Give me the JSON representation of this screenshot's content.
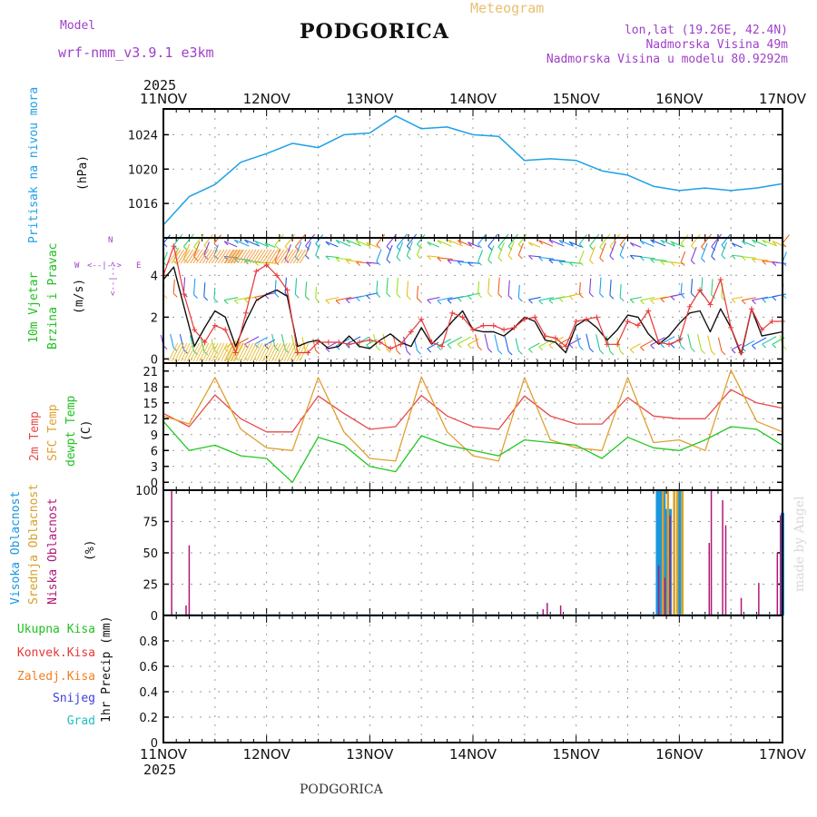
{
  "header": {
    "model_label": "Model",
    "model_name": "wrf-nmm_v3.9.1 e3km",
    "title": "PODGORICA",
    "meteogram": "Meteogram",
    "lonlat": "lon,lat (19.26E, 42.4N)",
    "altitude": "Nadmorska Visina 49m",
    "model_altitude": "Nadmorska Visina u modelu 80.9292m",
    "year_top": "2025",
    "year_bottom": "2025",
    "footer": "PODGORICA",
    "credit": "made by Angel"
  },
  "axis": {
    "days": [
      "11NOV",
      "12NOV",
      "13NOV",
      "14NOV",
      "15NOV",
      "16NOV",
      "17NOV"
    ]
  },
  "panels": {
    "pressure": {
      "label": "Pritisak na nivou mora",
      "unit": "(hPa)"
    },
    "wind": {
      "label1": "10m Vjetar",
      "label2": "Brzina i Pravac",
      "unit": "(m/s)",
      "compass_n": "N",
      "compass_e": "E",
      "compass_w": "W",
      "compass_s": "S",
      "arrow_left": "<--|-->",
      "arrow_right": "<--|-->"
    },
    "temp": {
      "label1": "2m Temp",
      "label2": "SFC Temp",
      "label3": "dewpt Temp",
      "unit": "(C)"
    },
    "cloud": {
      "label1": "Visoka Oblacnost",
      "label2": "Srednja Oblacnost",
      "label3": "Niska Oblacnost",
      "unit": "(%)"
    },
    "precip": {
      "labels": [
        "Ukupna Kisa",
        "Konvek.Kisa",
        "Zaledj.Kisa",
        "Snijeg",
        "Grad"
      ],
      "unit": "1hr Precip (mm)"
    }
  },
  "colors": {
    "pressure": "#1ca0e8",
    "wind_max": "#111111",
    "wind_avg": "#e83838",
    "t2m": "#e84848",
    "tsfc": "#e0a030",
    "dewpt": "#20c820",
    "cloud_high": "#1896e0",
    "cloud_mid": "#d8a028",
    "cloud_low": "#b01878",
    "rain": "#20c020",
    "conv": "#e83838",
    "frz": "#f08020",
    "snow": "#4040d8",
    "hail": "#20c0c0"
  },
  "chart_data": [
    {
      "type": "line",
      "title": "Pritisak na nivou mora",
      "ylabel": "(hPa)",
      "ylim": [
        1012,
        1027
      ],
      "yticks": [
        1016,
        1020,
        1024
      ],
      "x_days": [
        0,
        0.25,
        0.5,
        0.75,
        1,
        1.25,
        1.5,
        1.75,
        2,
        2.25,
        2.5,
        2.75,
        3,
        3.25,
        3.5,
        3.75,
        4,
        4.25,
        4.5,
        4.75,
        5,
        5.25,
        5.5,
        5.75,
        6
      ],
      "series": [
        {
          "name": "SLP",
          "values": [
            1013.5,
            1016.8,
            1018.2,
            1020.8,
            1021.8,
            1023.0,
            1022.5,
            1024.0,
            1024.2,
            1026.2,
            1024.7,
            1024.9,
            1024.0,
            1023.8,
            1021.0,
            1021.2,
            1021.0,
            1019.8,
            1019.3,
            1018.0,
            1017.5,
            1017.8,
            1017.5,
            1017.8,
            1018.3
          ]
        }
      ]
    },
    {
      "type": "line",
      "title": "10m Vjetar Brzina i Pravac",
      "ylabel": "(m/s)",
      "ylim": [
        -0.2,
        5.8
      ],
      "yticks": [
        0,
        2,
        4
      ],
      "x_days": [
        0,
        0.1,
        0.2,
        0.3,
        0.4,
        0.5,
        0.6,
        0.7,
        0.8,
        0.9,
        1,
        1.1,
        1.2,
        1.3,
        1.4,
        1.5,
        1.6,
        1.7,
        1.8,
        1.9,
        2,
        2.1,
        2.2,
        2.3,
        2.4,
        2.5,
        2.6,
        2.7,
        2.8,
        2.9,
        3,
        3.1,
        3.2,
        3.3,
        3.4,
        3.5,
        3.6,
        3.7,
        3.8,
        3.9,
        4,
        4.1,
        4.2,
        4.3,
        4.4,
        4.5,
        4.6,
        4.7,
        4.8,
        4.9,
        5,
        5.1,
        5.2,
        5.3,
        5.4,
        5.5,
        5.6,
        5.7,
        5.8,
        5.9,
        6
      ],
      "series": [
        {
          "name": "max",
          "values": [
            3.8,
            4.4,
            2.5,
            0.6,
            1.5,
            2.3,
            2.0,
            0.6,
            1.8,
            2.8,
            3.1,
            3.3,
            3.0,
            0.6,
            0.8,
            0.9,
            0.5,
            0.6,
            1.1,
            0.6,
            0.5,
            0.9,
            1.2,
            0.8,
            0.6,
            1.5,
            0.7,
            1.2,
            1.8,
            2.3,
            1.4,
            1.3,
            1.3,
            1.1,
            1.5,
            2.0,
            1.8,
            0.9,
            0.8,
            0.3,
            1.6,
            1.9,
            1.5,
            0.9,
            1.4,
            2.1,
            2.0,
            1.2,
            0.7,
            1.1,
            1.7,
            2.2,
            2.3,
            1.3,
            2.4,
            1.5,
            0.2,
            2.4,
            1.1,
            1.2,
            1.3
          ]
        },
        {
          "name": "avg",
          "values": [
            4.0,
            5.4,
            3.1,
            1.4,
            0.8,
            1.6,
            1.4,
            0.3,
            2.2,
            4.2,
            4.5,
            4.0,
            3.3,
            0.3,
            0.3,
            0.8,
            0.8,
            0.8,
            0.7,
            0.8,
            0.9,
            0.8,
            0.5,
            0.7,
            1.3,
            1.9,
            0.8,
            0.6,
            2.2,
            2.0,
            1.4,
            1.6,
            1.6,
            1.4,
            1.5,
            1.9,
            2.0,
            1.1,
            1.0,
            0.6,
            1.8,
            1.9,
            2.0,
            0.7,
            0.7,
            1.8,
            1.6,
            2.3,
            0.8,
            0.7,
            0.9,
            2.5,
            3.3,
            2.6,
            3.8,
            1.5,
            0.3,
            2.4,
            1.4,
            1.8,
            1.8
          ]
        }
      ],
      "barb_rows": [
        "gust",
        "upper",
        "mid",
        "low"
      ]
    },
    {
      "type": "line",
      "title": "2m Temp / SFC Temp / dewpt Temp",
      "ylabel": "(C)",
      "ylim": [
        -1.5,
        22.5
      ],
      "yticks": [
        0,
        3,
        6,
        9,
        12,
        15,
        18,
        21
      ],
      "x_days": [
        0,
        0.25,
        0.5,
        0.75,
        1,
        1.25,
        1.5,
        1.75,
        2,
        2.25,
        2.5,
        2.75,
        3,
        3.25,
        3.5,
        3.75,
        4,
        4.25,
        4.5,
        4.75,
        5,
        5.25,
        5.5,
        5.75,
        6
      ],
      "series": [
        {
          "name": "2m Temp",
          "values": [
            13,
            10.5,
            16.5,
            12,
            9.5,
            9.5,
            16.3,
            13,
            10,
            10.5,
            16.4,
            12.5,
            10.5,
            10,
            16.3,
            12.5,
            11,
            11,
            16,
            12.5,
            12,
            12,
            17.5,
            15,
            14
          ]
        },
        {
          "name": "SFC Temp",
          "values": [
            12.5,
            11,
            19.8,
            10,
            6.5,
            6,
            19.8,
            9.5,
            4.5,
            4,
            19.9,
            9.5,
            5,
            4,
            19.8,
            8,
            6.5,
            6,
            19.8,
            7.5,
            8,
            6,
            21.2,
            11.5,
            9.5
          ]
        },
        {
          "name": "dewpt Temp",
          "values": [
            11.5,
            6,
            7,
            5,
            4.5,
            0,
            8.5,
            7,
            3,
            2,
            8.8,
            7,
            6,
            5,
            8,
            7.5,
            7,
            4.5,
            8.5,
            6.5,
            6,
            8,
            10.5,
            10,
            7
          ]
        }
      ]
    },
    {
      "type": "bar",
      "title": "Oblacnost",
      "ylabel": "(%)",
      "ylim": [
        0,
        100
      ],
      "yticks": [
        0,
        25,
        50,
        75,
        100
      ],
      "series": [
        {
          "name": "Visoka Oblacnost",
          "points": [
            [
              4.79,
              100
            ],
            [
              4.82,
              100
            ],
            [
              4.85,
              100
            ],
            [
              4.88,
              85
            ],
            [
              4.91,
              85
            ],
            [
              5.0,
              100
            ],
            [
              6.0,
              82
            ]
          ]
        },
        {
          "name": "Srednja Oblacnost",
          "points": [
            [
              4.84,
              100
            ],
            [
              4.89,
              100
            ],
            [
              4.95,
              100
            ],
            [
              4.98,
              100
            ],
            [
              5.03,
              100
            ]
          ]
        },
        {
          "name": "Niska Oblacnost",
          "points": [
            [
              0.08,
              100
            ],
            [
              0.22,
              8
            ],
            [
              0.25,
              56
            ],
            [
              3.68,
              5
            ],
            [
              3.72,
              10
            ],
            [
              3.85,
              8
            ],
            [
              4.8,
              40
            ],
            [
              4.86,
              30
            ],
            [
              4.91,
              80
            ],
            [
              5.29,
              58
            ],
            [
              5.31,
              100
            ],
            [
              5.42,
              92
            ],
            [
              5.45,
              72
            ],
            [
              5.6,
              14
            ],
            [
              5.77,
              26
            ],
            [
              5.95,
              50
            ],
            [
              5.98,
              80
            ]
          ]
        }
      ]
    },
    {
      "type": "bar",
      "title": "1hr Precip",
      "ylabel": "1hr Precip (mm)",
      "ylim": [
        0,
        1.0
      ],
      "yticks": [
        0,
        0.2,
        0.4,
        0.6,
        0.8
      ],
      "series": [
        {
          "name": "Ukupna Kisa",
          "values": []
        },
        {
          "name": "Konvek.Kisa",
          "values": []
        },
        {
          "name": "Zaledj.Kisa",
          "values": []
        },
        {
          "name": "Snijeg",
          "values": []
        },
        {
          "name": "Grad",
          "values": []
        }
      ]
    }
  ]
}
